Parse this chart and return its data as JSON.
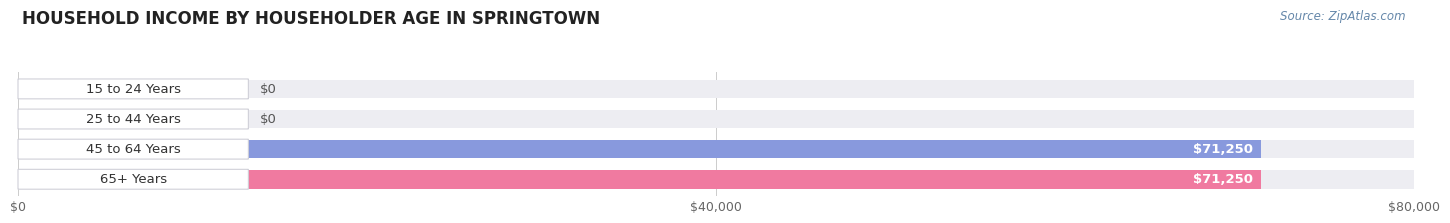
{
  "title": "HOUSEHOLD INCOME BY HOUSEHOLDER AGE IN SPRINGTOWN",
  "source": "Source: ZipAtlas.com",
  "categories": [
    "15 to 24 Years",
    "25 to 44 Years",
    "45 to 64 Years",
    "65+ Years"
  ],
  "values": [
    0,
    0,
    71250,
    71250
  ],
  "bar_colors": [
    "#c9a8d4",
    "#7dcfca",
    "#8899dd",
    "#f07aa0"
  ],
  "bar_bg_color": "#ededf2",
  "background_color": "#ffffff",
  "xmax": 80000,
  "xtick_values": [
    0,
    40000,
    80000
  ],
  "xtick_labels": [
    "$0",
    "$40,000",
    "$80,000"
  ],
  "value_labels": [
    "$0",
    "$0",
    "$71,250",
    "$71,250"
  ],
  "title_fontsize": 12,
  "label_fontsize": 9.5,
  "tick_fontsize": 9,
  "source_fontsize": 8.5
}
